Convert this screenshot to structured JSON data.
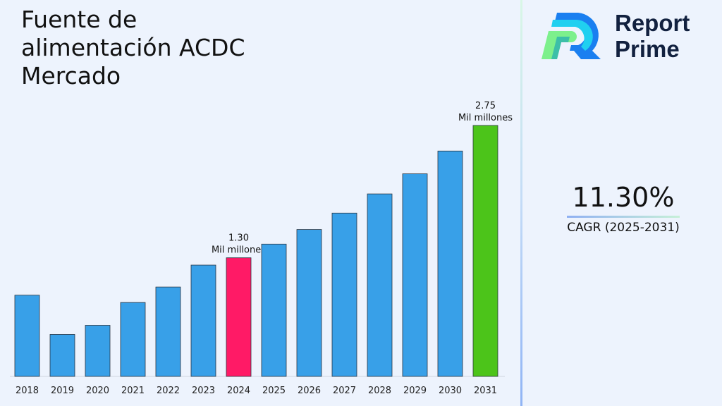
{
  "title": "Fuente de alimentación ACDC Mercado",
  "logo": {
    "line1": "Report",
    "line2": "Prime"
  },
  "cagr": {
    "value": "11.30%",
    "label": "CAGR (2025-2031)"
  },
  "colors": {
    "bar": "#38a0e8",
    "highlight_2024": "#ff1a66",
    "highlight_2031": "#4cc41a"
  },
  "chart_data": {
    "type": "bar",
    "categories": [
      "2018",
      "2019",
      "2020",
      "2021",
      "2022",
      "2023",
      "2024",
      "2025",
      "2026",
      "2027",
      "2028",
      "2029",
      "2030",
      "2031"
    ],
    "values": [
      0.89,
      0.46,
      0.56,
      0.81,
      0.98,
      1.22,
      1.3,
      1.45,
      1.61,
      1.79,
      2.0,
      2.22,
      2.47,
      2.75
    ],
    "unit": "Mil millones",
    "annotations": [
      {
        "category": "2024",
        "value": "1.30",
        "unit": "Mil millones"
      },
      {
        "category": "2031",
        "value": "2.75",
        "unit": "Mil millones"
      }
    ],
    "grid": false
  }
}
